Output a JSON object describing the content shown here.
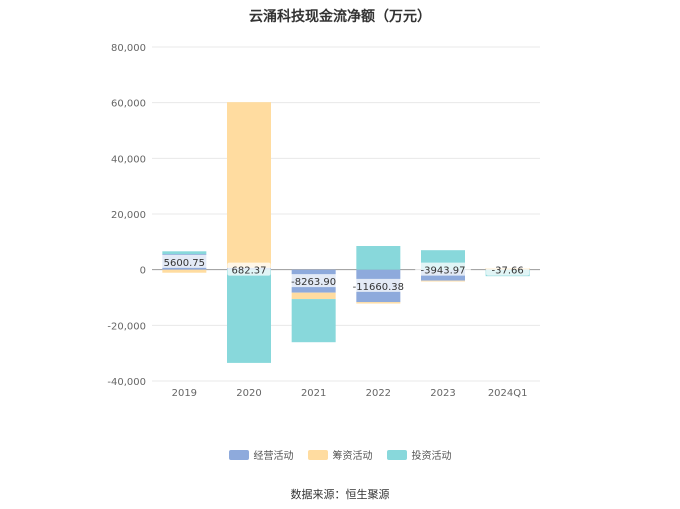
{
  "title": "云涌科技现金流净额（万元）",
  "source": "数据来源：恒生聚源",
  "chart_data": {
    "type": "bar",
    "stacked": true,
    "categories": [
      "2019",
      "2020",
      "2021",
      "2022",
      "2023",
      "2024Q1"
    ],
    "series": [
      {
        "name": "经营活动",
        "color": "#8eaadc",
        "values": [
          5600.75,
          682.37,
          -8263.9,
          -11660.38,
          -3943.97,
          -37.66
        ]
      },
      {
        "name": "筹资活动",
        "color": "#ffdca0",
        "values": [
          -1100,
          59500,
          -2300,
          -500,
          -300,
          600
        ]
      },
      {
        "name": "投资活动",
        "color": "#88d8db",
        "values": [
          1000,
          -33500,
          -15500,
          8500,
          7000,
          -2300
        ]
      }
    ],
    "data_labels": [
      "5600.75",
      "682.37",
      "-8263.90",
      "-11660.38",
      "-3943.97",
      "-37.66"
    ],
    "ylim": [
      -40000,
      80000
    ],
    "yticks": [
      -40000,
      -20000,
      0,
      20000,
      40000,
      60000,
      80000
    ],
    "ytick_labels": [
      "-40,000",
      "-20,000",
      "0",
      "20,000",
      "40,000",
      "60,000",
      "80,000"
    ],
    "grid": true,
    "legend_position": "bottom",
    "xlabel": "",
    "ylabel": ""
  }
}
